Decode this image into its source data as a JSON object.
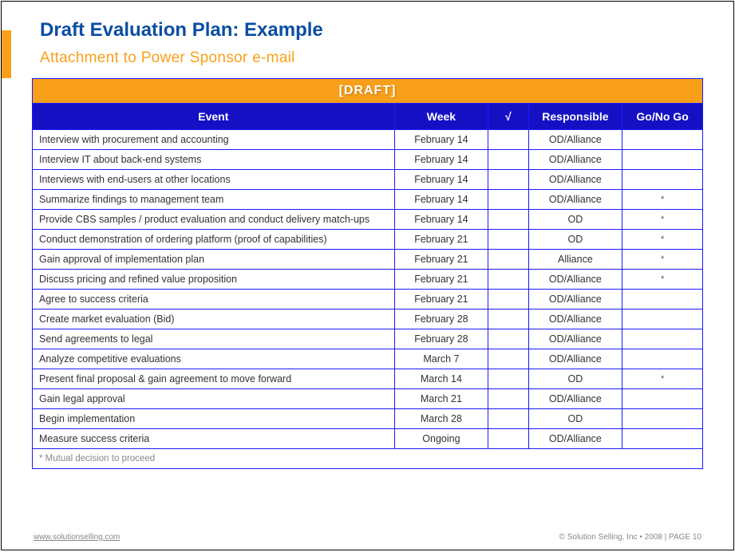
{
  "title": "Draft Evaluation Plan: Example",
  "subtitle": "Attachment to Power Sponsor e-mail",
  "banner": "[DRAFT]",
  "columns": {
    "event": "Event",
    "week": "Week",
    "check": "√",
    "responsible": "Responsible",
    "go": "Go/No Go"
  },
  "col_widths": {
    "event_pct": 54,
    "week_pct": 14,
    "check_pct": 6,
    "resp_pct": 14,
    "go_pct": 12
  },
  "colors": {
    "title": "#0b4da2",
    "subtitle": "#f9a01b",
    "banner_bg": "#f9a01b",
    "banner_fg": "#ffffff",
    "header_bg": "#1510c4",
    "header_fg": "#ffffff",
    "border": "#1a1aff",
    "text": "#333333",
    "footnote": "#888888"
  },
  "rows": [
    {
      "event": "Interview with procurement and accounting",
      "week": "February 14",
      "check": "",
      "responsible": "OD/Alliance",
      "go": ""
    },
    {
      "event": "Interview IT about back-end systems",
      "week": "February 14",
      "check": "",
      "responsible": "OD/Alliance",
      "go": ""
    },
    {
      "event": "Interviews with end-users at other locations",
      "week": "February 14",
      "check": "",
      "responsible": "OD/Alliance",
      "go": ""
    },
    {
      "event": "Summarize findings to management team",
      "week": "February 14",
      "check": "",
      "responsible": "OD/Alliance",
      "go": "*"
    },
    {
      "event": "Provide CBS samples / product evaluation and conduct delivery match-ups",
      "week": "February 14",
      "check": "",
      "responsible": "OD",
      "go": "*"
    },
    {
      "event": "Conduct demonstration of ordering platform (proof of capabilities)",
      "week": "February 21",
      "check": "",
      "responsible": "OD",
      "go": "*"
    },
    {
      "event": "Gain approval of implementation plan",
      "week": "February 21",
      "check": "",
      "responsible": "Alliance",
      "go": "*"
    },
    {
      "event": "Discuss pricing and refined value proposition",
      "week": "February 21",
      "check": "",
      "responsible": "OD/Alliance",
      "go": "*"
    },
    {
      "event": "Agree to success criteria",
      "week": "February 21",
      "check": "",
      "responsible": "OD/Alliance",
      "go": ""
    },
    {
      "event": "Create market evaluation (Bid)",
      "week": "February 28",
      "check": "",
      "responsible": "OD/Alliance",
      "go": ""
    },
    {
      "event": "Send agreements to legal",
      "week": "February 28",
      "check": "",
      "responsible": "OD/Alliance",
      "go": ""
    },
    {
      "event": "Analyze competitive evaluations",
      "week": "March 7",
      "check": "",
      "responsible": "OD/Alliance",
      "go": ""
    },
    {
      "event": "Present final proposal & gain agreement to move forward",
      "week": "March 14",
      "check": "",
      "responsible": "OD",
      "go": "*"
    },
    {
      "event": "Gain legal approval",
      "week": "March 21",
      "check": "",
      "responsible": "OD/Alliance",
      "go": ""
    },
    {
      "event": "Begin implementation",
      "week": "March 28",
      "check": "",
      "responsible": "OD",
      "go": ""
    },
    {
      "event": "Measure success criteria",
      "week": "Ongoing",
      "check": "",
      "responsible": "OD/Alliance",
      "go": ""
    }
  ],
  "footnote": "* Mutual decision to proceed",
  "footer_left": "www.solutionselling.com",
  "footer_right": "© Solution Selling, Inc • 2008 | PAGE 10"
}
